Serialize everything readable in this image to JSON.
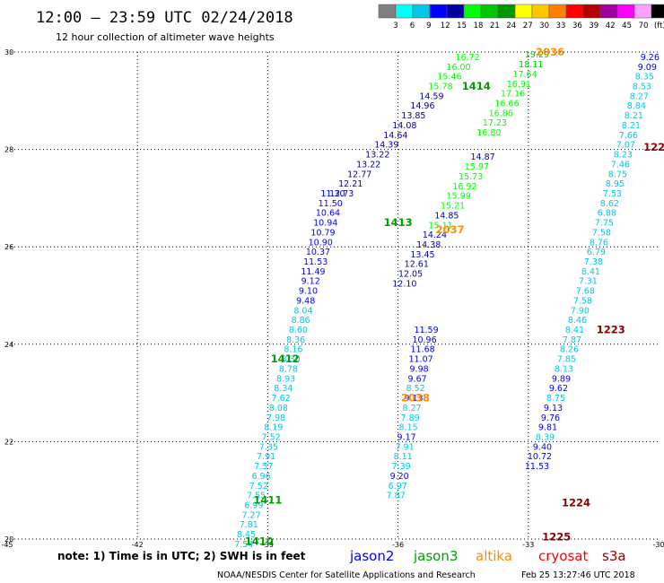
{
  "header": {
    "title": "12:00 – 23:59 UTC 02/24/2018",
    "subtitle": "12 hour collection of altimeter wave heights"
  },
  "legend": {
    "labels": [
      "3",
      "6",
      "9",
      "12",
      "15",
      "18",
      "21",
      "24",
      "27",
      "30",
      "33",
      "36",
      "39",
      "42",
      "45",
      "70",
      "(ft)"
    ],
    "colors": [
      "#808080",
      "#00ffff",
      "#00c8e6",
      "#0000ff",
      "#0000a0",
      "#00ff00",
      "#00c800",
      "#009600",
      "#ffff00",
      "#ffc800",
      "#ff8000",
      "#ff0000",
      "#b40000",
      "#a000a0",
      "#ff00ff",
      "#ffa0ff",
      "#000000"
    ]
  },
  "footer": {
    "note": "note: 1) Time is in UTC; 2) SWH is in feet",
    "satellites": [
      {
        "name": "jason2",
        "color": "#0000ff"
      },
      {
        "name": "jason3",
        "color": "#00a000"
      },
      {
        "name": "altika",
        "color": "#ff8c00"
      },
      {
        "name": "cryosat",
        "color": "#ff0000"
      },
      {
        "name": "s3a",
        "color": "#8b0000"
      }
    ],
    "credit": "NOAA/NESDIS Center for Satellite Applications and Research",
    "timestamp": "Feb 25 13:27:46 UTC 2018"
  },
  "chart_data": {
    "type": "scatter",
    "xlim": [
      -45,
      -30
    ],
    "ylim": [
      20,
      30
    ],
    "xticks": [
      "-45",
      "-42",
      "-39",
      "-36",
      "-33",
      "-30"
    ],
    "yticks": [
      "20",
      "22",
      "24",
      "26",
      "28",
      "30"
    ],
    "grid": true,
    "color_scale": {
      "breaks": [
        3,
        6,
        9,
        12,
        15,
        18,
        21,
        24,
        27,
        30,
        33,
        36,
        39,
        42,
        45,
        70
      ],
      "colors": [
        "#808080",
        "#00ffff",
        "#00c8e6",
        "#0000ff",
        "#0000a0",
        "#00ff00",
        "#00c800",
        "#009600",
        "#ffff00",
        "#ffc800",
        "#ff8000",
        "#ff0000",
        "#b40000",
        "#a000a0",
        "#ff00ff",
        "#ffa0ff"
      ],
      "over_color": "#000000"
    },
    "tracks": [
      {
        "satellite": "jason2",
        "x_start": -37.5,
        "x_end": -39.55,
        "values": [
          "11.30",
          "11.50",
          "10.64",
          "10.94",
          "10.79",
          "10.90",
          "10.37",
          "11.53",
          "11.49",
          "9.12",
          "9.10",
          "9.48",
          "8.04",
          "8.86",
          "8.60",
          "8.36",
          "8.16",
          "8.30",
          "8.78",
          "8.93",
          "8.34",
          "7.62",
          "8.08",
          "7.98",
          "8.19",
          "7.52",
          "7.35",
          "7.91",
          "7.57",
          "6.96",
          "7.52",
          "7.55",
          "6.99",
          "7.27",
          "7.81",
          "8.45",
          "7.54"
        ],
        "y": [
          27.1,
          26.9,
          26.7,
          26.5,
          26.3,
          26.1,
          25.9,
          25.7,
          25.5,
          25.3,
          25.1,
          24.9,
          24.7,
          24.5,
          24.3,
          24.1,
          23.9,
          23.7,
          23.5,
          23.3,
          23.1,
          22.9,
          22.7,
          22.5,
          22.3,
          22.1,
          21.9,
          21.7,
          21.5,
          21.3,
          21.1,
          20.9,
          20.7,
          20.5,
          20.3,
          20.1,
          19.9
        ]
      },
      {
        "satellite": "jason3",
        "x_start": -34.4,
        "x_end": -37.3,
        "values": [
          "16.72",
          "16.00",
          "15.46",
          "15.78",
          "14.59",
          "14.96",
          "13.85",
          "14.08",
          "14.64",
          "14.39",
          "13.22",
          "13.22",
          "12.77",
          "12.21",
          "12.73"
        ],
        "y": [
          29.9,
          29.7,
          29.5,
          29.3,
          29.1,
          28.9,
          28.7,
          28.5,
          28.3,
          28.1,
          27.9,
          27.7,
          27.5,
          27.3,
          27.1
        ]
      },
      {
        "satellite": "jason3",
        "x_start": -32.8,
        "x_end": -35.85,
        "values": [
          "19.29",
          "18.11",
          "17.64",
          "16.91",
          "17.16",
          "16.66",
          "16.86",
          "17.23",
          "16.80",
          "14.87",
          "15.97",
          "15.73",
          "16.92",
          "15.99",
          "15.21",
          "14.85",
          "15.11",
          "14.24",
          "14.38",
          "13.45",
          "12.61",
          "12.05",
          "12.10"
        ],
        "y": [
          29.95,
          29.75,
          29.55,
          29.35,
          29.15,
          28.95,
          28.75,
          28.55,
          28.35,
          27.85,
          27.65,
          27.45,
          27.25,
          27.05,
          26.85,
          26.65,
          26.45,
          26.25,
          26.05,
          25.85,
          25.65,
          25.45,
          25.25
        ]
      },
      {
        "satellite": "jason2",
        "x_start": -35.35,
        "x_end": -36.05,
        "values": [
          "11.59",
          "10.96",
          "11.68",
          "11.07",
          "9.98",
          "9.67",
          "8.52",
          "9.13",
          "8.27",
          "7.89",
          "8.15",
          "9.17",
          "7.91",
          "8.11",
          "7.39",
          "9.20",
          "6.97",
          "7.87"
        ],
        "y": [
          24.3,
          24.1,
          23.9,
          23.7,
          23.5,
          23.3,
          23.1,
          22.9,
          22.7,
          22.5,
          22.3,
          22.1,
          21.9,
          21.7,
          21.5,
          21.3,
          21.1,
          20.9
        ]
      },
      {
        "satellite": "jason2",
        "x_start": -30.2,
        "x_end": -32.8,
        "values": [
          "9.26",
          "9.09",
          "8.35",
          "8.53",
          "8.27",
          "8.84",
          "8.21",
          "8.21",
          "7.66",
          "7.07",
          "8.23",
          "7.46",
          "8.75",
          "8.95",
          "7.53",
          "8.62",
          "6.88",
          "7.75",
          "7.58",
          "8.76",
          "6.79",
          "7.38",
          "8.41",
          "7.31",
          "7.68",
          "7.58",
          "7.90",
          "8.46",
          "8.41",
          "7.87",
          "8.26",
          "7.85",
          "8.13",
          "9.89",
          "9.62",
          "8.75",
          "9.13",
          "9.76",
          "9.81",
          "8.39",
          "9.40",
          "10.72",
          "11.53"
        ],
        "y": [
          29.9,
          29.7,
          29.5,
          29.3,
          29.1,
          28.9,
          28.7,
          28.5,
          28.3,
          28.1,
          27.9,
          27.7,
          27.5,
          27.3,
          27.1,
          26.9,
          26.7,
          26.5,
          26.3,
          26.1,
          25.9,
          25.7,
          25.5,
          25.3,
          25.1,
          24.9,
          24.7,
          24.5,
          24.3,
          24.1,
          23.9,
          23.7,
          23.5,
          23.3,
          23.1,
          22.9,
          22.7,
          22.5,
          22.3,
          22.1,
          21.9,
          21.7,
          21.5
        ]
      }
    ],
    "pass_labels": [
      {
        "label": "2036",
        "satellite": "altika",
        "x": -32.5,
        "y": 30.0
      },
      {
        "label": "1414",
        "satellite": "jason3",
        "x": -34.2,
        "y": 29.3
      },
      {
        "label": "1413",
        "satellite": "jason3",
        "x": -36.0,
        "y": 26.5
      },
      {
        "label": "2037",
        "satellite": "altika",
        "x": -34.8,
        "y": 26.35
      },
      {
        "label": "1412",
        "satellite": "jason3",
        "x": -38.6,
        "y": 23.7
      },
      {
        "label": "2038",
        "satellite": "altika",
        "x": -35.6,
        "y": 22.9
      },
      {
        "label": "1411",
        "satellite": "jason3",
        "x": -39.0,
        "y": 20.8
      },
      {
        "label": "1410",
        "satellite": "jason3",
        "x": -39.2,
        "y": 19.95
      },
      {
        "label": "122",
        "satellite": "s3a",
        "x": -30.1,
        "y": 28.05
      },
      {
        "label": "1223",
        "satellite": "s3a",
        "x": -31.1,
        "y": 24.3
      },
      {
        "label": "1224",
        "satellite": "s3a",
        "x": -31.9,
        "y": 20.75
      },
      {
        "label": "1225",
        "satellite": "s3a",
        "x": -32.35,
        "y": 20.05
      }
    ]
  }
}
